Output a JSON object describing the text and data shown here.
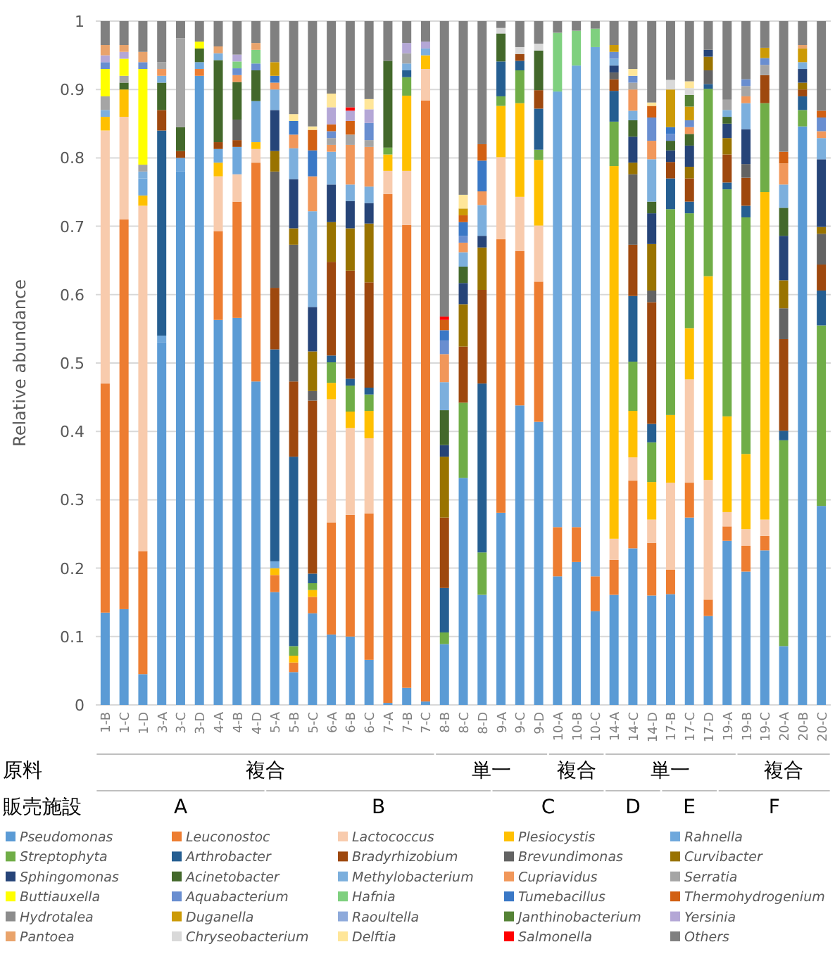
{
  "chart_data": {
    "type": "bar",
    "stacked": true,
    "ylabel": "Relative abundance",
    "ylim": [
      0,
      1
    ],
    "yticks": [
      0,
      0.1,
      0.2,
      0.3,
      0.4,
      0.5,
      0.6,
      0.7,
      0.8,
      0.9,
      1
    ],
    "grid": "y",
    "legend": "bottom",
    "categories": [
      "1-B",
      "1-C",
      "1-D",
      "3-A",
      "3-C",
      "3-D",
      "4-A",
      "4-B",
      "4-D",
      "5-A",
      "5-B",
      "5-C",
      "6-A",
      "6-B",
      "6-C",
      "7-A",
      "7-B",
      "7-C",
      "8-B",
      "8-C",
      "8-D",
      "9-A",
      "9-C",
      "9-D",
      "10-A",
      "10-B",
      "10-C",
      "14-A",
      "14-C",
      "14-D",
      "17-B",
      "17-C",
      "17-D",
      "19-A",
      "19-B",
      "19-C",
      "20-A",
      "20-B",
      "20-C"
    ],
    "annotations": [
      "原料",
      "複合",
      "単一",
      "複合",
      "単一",
      "複合",
      "販売施設",
      "A",
      "B",
      "C",
      "D",
      "E",
      "F"
    ],
    "series": [
      {
        "name": "Pseudomonas",
        "color": "#5b9bd5",
        "values": [
          0.135,
          0.14,
          0.045,
          0.53,
          0.78,
          0.92,
          0.563,
          0.566,
          0.473,
          0.165,
          0.048,
          0.134,
          0.103,
          0.1,
          0.066,
          0.003,
          0.025,
          0.005,
          0.089,
          0.332,
          0.161,
          0.281,
          0.438,
          0.414,
          0.188,
          0.209,
          0.137,
          0.161,
          0.229,
          0.16,
          0.162,
          0.274,
          0.13,
          0.24,
          0.195,
          0.226,
          0.086,
          0.846,
          0.291
        ]
      },
      {
        "name": "Leuconostoc",
        "color": "#ed7d31",
        "values": [
          0.335,
          0.57,
          0.18,
          null,
          null,
          0.01,
          0.13,
          0.17,
          0.32,
          0.025,
          0.014,
          0.024,
          0.164,
          0.178,
          0.214,
          0.744,
          0.677,
          0.879,
          null,
          null,
          null,
          0.4,
          0.226,
          0.205,
          0.072,
          0.051,
          0.051,
          0.051,
          0.099,
          0.077,
          0.036,
          0.051,
          0.024,
          0.021,
          0.038,
          0.021,
          null,
          null,
          null
        ]
      },
      {
        "name": "Lactococcus",
        "color": "#f8cbad",
        "values": [
          0.37,
          0.15,
          0.505,
          null,
          null,
          null,
          0.08,
          0.04,
          0.02,
          null,
          null,
          null,
          0.18,
          0.127,
          0.11,
          0.034,
          0.079,
          0.046,
          null,
          null,
          null,
          0.12,
          0.079,
          0.082,
          null,
          null,
          null,
          0.031,
          0.034,
          0.034,
          0.127,
          0.151,
          0.175,
          0.021,
          0.024,
          0.024,
          null,
          null,
          null
        ]
      },
      {
        "name": "Plesiocystis",
        "color": "#ffc000",
        "values": [
          0.02,
          0.04,
          0.015,
          null,
          null,
          null,
          0.02,
          null,
          0.01,
          0.01,
          0.01,
          0.01,
          0.024,
          0.024,
          0.04,
          0.024,
          0.11,
          0.02,
          null,
          null,
          null,
          0.075,
          0.137,
          0.096,
          null,
          null,
          null,
          0.545,
          0.068,
          0.055,
          0.099,
          0.075,
          0.298,
          0.14,
          0.11,
          0.479,
          null,
          null,
          null
        ]
      },
      {
        "name": "Rahnella",
        "color": "#6fa8dc",
        "values": [
          null,
          null,
          0.025,
          0.01,
          0.02,
          0.01,
          0.02,
          0.04,
          0.06,
          0.01,
          null,
          null,
          null,
          null,
          null,
          null,
          null,
          null,
          null,
          null,
          null,
          null,
          null,
          null,
          0.637,
          0.675,
          0.774,
          null,
          null,
          null,
          null,
          null,
          null,
          null,
          null,
          null,
          null,
          null,
          null
        ]
      },
      {
        "name": "Streptophyta",
        "color": "#70ad47",
        "values": [
          null,
          null,
          null,
          null,
          null,
          null,
          null,
          null,
          null,
          null,
          0.014,
          0.01,
          0.03,
          0.038,
          0.024,
          0.01,
          0.027,
          null,
          0.017,
          0.11,
          0.062,
          0.014,
          0.048,
          0.015,
          null,
          null,
          null,
          0.065,
          0.072,
          0.058,
          0.301,
          0.168,
          0.274,
          0.332,
          0.346,
          0.13,
          0.301,
          0.024,
          0.264
        ]
      },
      {
        "name": "Arthrobacter",
        "color": "#255e91",
        "values": [
          null,
          null,
          null,
          0.3,
          null,
          null,
          null,
          null,
          null,
          0.31,
          0.277,
          0.014,
          0.01,
          0.01,
          0.01,
          null,
          0.01,
          null,
          0.065,
          null,
          0.247,
          0.051,
          0.014,
          0.06,
          null,
          null,
          null,
          0.045,
          0.096,
          0.027,
          0.045,
          0.017,
          0.007,
          0.01,
          0.017,
          null,
          0.014,
          0.02,
          0.051
        ]
      },
      {
        "name": "Bradyrhizobium",
        "color": "#9e480e",
        "values": [
          null,
          null,
          null,
          0.03,
          0.01,
          null,
          0.01,
          0.01,
          null,
          0.09,
          0.11,
          0.253,
          0.137,
          0.158,
          0.154,
          null,
          null,
          null,
          0.103,
          0.082,
          0.137,
          null,
          0.01,
          0.027,
          null,
          null,
          null,
          0.017,
          0.075,
          0.178,
          0.024,
          0.034,
          null,
          0.041,
          0.041,
          0.041,
          0.134,
          0.01,
          0.038
        ]
      },
      {
        "name": "Brevundimonas",
        "color": "#636363",
        "values": [
          null,
          null,
          null,
          null,
          null,
          null,
          null,
          0.03,
          null,
          0.17,
          0.2,
          0.014,
          null,
          null,
          null,
          null,
          null,
          null,
          null,
          null,
          null,
          null,
          null,
          null,
          null,
          null,
          null,
          0.01,
          0.103,
          0.017,
          null,
          null,
          0.02,
          null,
          0.02,
          null,
          0.045,
          null,
          0.045
        ]
      },
      {
        "name": "Curvibacter",
        "color": "#997300",
        "values": [
          null,
          null,
          null,
          null,
          null,
          null,
          null,
          null,
          null,
          0.03,
          0.024,
          0.058,
          0.058,
          0.062,
          0.086,
          null,
          null,
          null,
          0.089,
          0.062,
          0.062,
          null,
          null,
          null,
          null,
          null,
          null,
          null,
          0.017,
          0.068,
          null,
          0.017,
          0.02,
          0.024,
          null,
          null,
          0.041,
          0.01,
          0.01
        ]
      },
      {
        "name": "Sphingomonas",
        "color": "#264478",
        "values": [
          null,
          null,
          null,
          null,
          null,
          null,
          null,
          null,
          null,
          0.06,
          0.072,
          0.065,
          0.055,
          0.04,
          0.03,
          null,
          null,
          null,
          0.017,
          0.031,
          0.017,
          null,
          null,
          null,
          null,
          null,
          null,
          0.01,
          0.038,
          0.045,
          0.017,
          0.031,
          0.01,
          0.021,
          0.051,
          null,
          0.065,
          0.02,
          0.099
        ]
      },
      {
        "name": "Acinetobacter",
        "color": "#43682b",
        "values": [
          null,
          0.01,
          null,
          0.04,
          0.035,
          0.02,
          0.12,
          0.055,
          0.045,
          null,
          null,
          null,
          null,
          null,
          null,
          0.127,
          null,
          null,
          0.051,
          0.024,
          null,
          0.041,
          null,
          0.058,
          null,
          null,
          null,
          null,
          0.024,
          0.017,
          0.014,
          0.017,
          null,
          0.01,
          null,
          null,
          0.041,
          null,
          null
        ]
      },
      {
        "name": "Methylobacterium",
        "color": "#7cafdd",
        "values": [
          0.01,
          null,
          0.01,
          0.01,
          null,
          null,
          0.01,
          null,
          null,
          0.03,
          0.045,
          0.14,
          0.048,
          0.024,
          0.024,
          null,
          0.01,
          0.01,
          0.041,
          0.021,
          0.045,
          null,
          null,
          null,
          null,
          null,
          null,
          0.01,
          0.014,
          0.062,
          null,
          null,
          null,
          0.01,
          0.038,
          null,
          0.034,
          0.01,
          0.031
        ]
      },
      {
        "name": "Cupriavidus",
        "color": "#f1975a",
        "values": [
          null,
          null,
          null,
          0.01,
          null,
          null,
          null,
          0.01,
          null,
          0.01,
          0.02,
          0.051,
          0.01,
          0.058,
          0.058,
          null,
          null,
          null,
          0.041,
          0.014,
          0.02,
          null,
          null,
          null,
          null,
          null,
          null,
          null,
          0.031,
          0.027,
          null,
          0.01,
          null,
          null,
          0.01,
          null,
          0.031,
          null,
          0.01
        ]
      },
      {
        "name": "Serratia",
        "color": "#a5a5a5",
        "values": [
          0.02,
          0.01,
          0.01,
          0.01,
          0.13,
          null,
          null,
          null,
          null,
          null,
          null,
          null,
          0.01,
          0.015,
          0.01,
          null,
          0.015,
          null,
          null,
          null,
          null,
          null,
          null,
          null,
          null,
          null,
          null,
          null,
          0.01,
          null,
          null,
          null,
          null,
          0.015,
          0.015,
          0.015,
          null,
          null,
          null
        ]
      },
      {
        "name": "Buttiauxella",
        "color": "#ffff00",
        "values": [
          0.04,
          0.025,
          0.14,
          null,
          null,
          0.01,
          null,
          null,
          null,
          null,
          null,
          null,
          null,
          null,
          null,
          null,
          null,
          null,
          null,
          null,
          null,
          null,
          null,
          null,
          null,
          null,
          null,
          null,
          null,
          null,
          null,
          null,
          null,
          null,
          null,
          null,
          null,
          null,
          null
        ]
      },
      {
        "name": "Aquabacterium",
        "color": "#698ed0",
        "values": [
          0.01,
          null,
          0.01,
          null,
          null,
          null,
          null,
          0.01,
          0.01,
          null,
          null,
          null,
          0.01,
          null,
          0.025,
          null,
          null,
          null,
          0.02,
          0.01,
          null,
          null,
          null,
          null,
          null,
          null,
          null,
          0.01,
          0.01,
          0.034,
          0.01,
          0.01,
          null,
          null,
          0.01,
          0.01,
          null,
          null,
          0.02
        ]
      },
      {
        "name": "Hafnia",
        "color": "#7fd07f",
        "values": [
          null,
          null,
          null,
          null,
          null,
          null,
          null,
          0.01,
          0.02,
          null,
          null,
          null,
          null,
          null,
          null,
          null,
          null,
          null,
          null,
          null,
          null,
          null,
          null,
          null,
          0.086,
          0.051,
          0.027,
          null,
          null,
          null,
          null,
          null,
          null,
          null,
          null,
          null,
          null,
          null,
          null
        ]
      },
      {
        "name": "Tumebacillus",
        "color": "#3a78c6",
        "values": [
          null,
          null,
          null,
          null,
          null,
          null,
          null,
          null,
          null,
          0.01,
          0.02,
          0.038,
          null,
          null,
          null,
          null,
          null,
          null,
          0.015,
          0.02,
          0.045,
          null,
          null,
          null,
          null,
          null,
          null,
          null,
          null,
          null,
          0.01,
          null,
          null,
          null,
          null,
          null,
          null,
          null,
          null
        ]
      },
      {
        "name": "Thermohydrogenium",
        "color": "#d26012",
        "values": [
          null,
          null,
          null,
          null,
          null,
          null,
          null,
          null,
          null,
          null,
          null,
          0.03,
          0.01,
          0.02,
          null,
          null,
          null,
          null,
          0.015,
          0.01,
          0.024,
          null,
          null,
          null,
          null,
          null,
          null,
          null,
          null,
          0.017,
          null,
          null,
          null,
          null,
          null,
          null,
          0.017,
          null,
          0.01
        ]
      },
      {
        "name": "Hydrotalea",
        "color": "#8c8c8c",
        "values": [
          null,
          null,
          null,
          null,
          null,
          null,
          null,
          null,
          null,
          null,
          null,
          null,
          null,
          null,
          null,
          null,
          null,
          null,
          null,
          null,
          null,
          null,
          null,
          null,
          null,
          null,
          null,
          null,
          null,
          null,
          null,
          null,
          null,
          null,
          null,
          null,
          null,
          null,
          null
        ]
      },
      {
        "name": "Duganella",
        "color": "#cc9a06",
        "values": [
          null,
          null,
          null,
          null,
          null,
          null,
          null,
          null,
          null,
          0.02,
          null,
          null,
          null,
          null,
          null,
          null,
          null,
          null,
          null,
          0.01,
          null,
          null,
          null,
          null,
          null,
          null,
          null,
          0.01,
          null,
          null,
          0.055,
          0.02,
          null,
          null,
          null,
          0.015,
          null,
          0.02,
          null
        ]
      },
      {
        "name": "Raoultella",
        "color": "#8eaadb",
        "values": [
          null,
          null,
          null,
          null,
          null,
          null,
          null,
          null,
          null,
          null,
          null,
          null,
          null,
          null,
          null,
          null,
          null,
          null,
          null,
          null,
          null,
          null,
          null,
          null,
          null,
          null,
          null,
          null,
          null,
          null,
          null,
          null,
          null,
          null,
          null,
          null,
          null,
          null,
          null
        ]
      },
      {
        "name": "Janthinobacterium",
        "color": "#548235",
        "values": [
          null,
          null,
          null,
          null,
          null,
          null,
          null,
          null,
          null,
          null,
          null,
          null,
          null,
          null,
          null,
          null,
          null,
          null,
          null,
          null,
          null,
          null,
          null,
          null,
          null,
          null,
          null,
          null,
          null,
          null,
          null,
          0.017,
          null,
          null,
          null,
          null,
          null,
          null,
          null
        ]
      },
      {
        "name": "Yersinia",
        "color": "#b4a7d6",
        "values": [
          0.01,
          0.01,
          null,
          null,
          null,
          null,
          null,
          0.01,
          null,
          null,
          null,
          null,
          0.025,
          0.015,
          0.02,
          null,
          0.015,
          0.01,
          null,
          null,
          null,
          null,
          null,
          null,
          null,
          null,
          null,
          null,
          null,
          null,
          null,
          null,
          null,
          null,
          null,
          null,
          null,
          null,
          null
        ]
      },
      {
        "name": "Pantoea",
        "color": "#e9a36b",
        "values": [
          0.015,
          0.01,
          0.015,
          null,
          null,
          null,
          0.01,
          null,
          0.01,
          null,
          null,
          null,
          null,
          null,
          null,
          null,
          null,
          null,
          null,
          null,
          null,
          null,
          null,
          null,
          null,
          null,
          null,
          null,
          null,
          null,
          null,
          null,
          null,
          null,
          null,
          null,
          null,
          0.005,
          null
        ]
      },
      {
        "name": "Chryseobacterium",
        "color": "#d9d9d9",
        "values": [
          null,
          null,
          null,
          null,
          null,
          null,
          null,
          null,
          null,
          null,
          null,
          null,
          null,
          null,
          null,
          null,
          null,
          null,
          null,
          null,
          null,
          0.008,
          0.01,
          0.01,
          null,
          null,
          null,
          null,
          null,
          null,
          0.014,
          0.01,
          null,
          null,
          null,
          null,
          null,
          null,
          null
        ]
      },
      {
        "name": "Delftia",
        "color": "#ffe699",
        "values": [
          null,
          null,
          null,
          null,
          null,
          null,
          null,
          null,
          null,
          null,
          0.01,
          0.005,
          0.02,
          null,
          0.015,
          null,
          null,
          null,
          null,
          0.02,
          null,
          null,
          null,
          null,
          null,
          null,
          null,
          null,
          0.01,
          0.005,
          null,
          0.01,
          null,
          null,
          null,
          null,
          null,
          null,
          null
        ]
      },
      {
        "name": "Salmonella",
        "color": "#ff0000",
        "values": [
          null,
          null,
          null,
          null,
          null,
          null,
          null,
          null,
          null,
          null,
          null,
          null,
          null,
          0.005,
          null,
          null,
          null,
          null,
          0.005,
          null,
          null,
          null,
          null,
          null,
          null,
          null,
          null,
          null,
          null,
          null,
          null,
          null,
          null,
          null,
          null,
          null,
          null,
          null,
          null
        ]
      },
      {
        "name": "Others",
        "color": "#808080",
        "values": [
          0.035,
          0.035,
          0.045,
          0.06,
          0.025,
          0.03,
          0.037,
          0.049,
          0.032,
          0.06,
          0.136,
          0.154,
          0.106,
          0.126,
          0.114,
          0.058,
          0.032,
          0.03,
          0.432,
          0.254,
          0.18,
          0.01,
          0.038,
          0.033,
          0.017,
          0.014,
          0.011,
          0.035,
          0.07,
          0.119,
          0.086,
          0.088,
          0.042,
          0.115,
          0.085,
          0.039,
          0.191,
          0.035,
          0.131
        ]
      }
    ]
  }
}
